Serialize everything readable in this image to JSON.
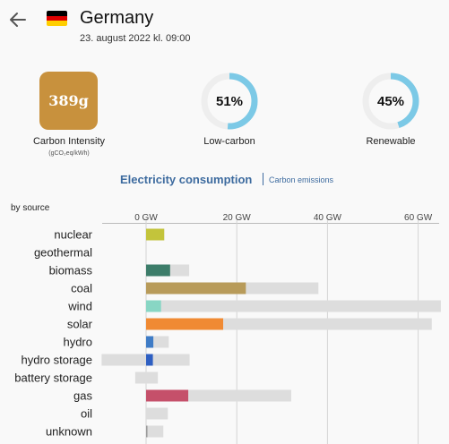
{
  "header": {
    "title": "Germany",
    "date": "23. august 2022 kl. 09:00",
    "flag_colors": [
      "#000000",
      "#dd0000",
      "#ffce00"
    ]
  },
  "summary": {
    "carbon_intensity": {
      "value": "389g",
      "label": "Carbon Intensity",
      "unit": "(gCO₂eq/kWh)",
      "color": "#c8913d"
    },
    "low_carbon": {
      "value": "51%",
      "label": "Low-carbon",
      "fraction": 0.51
    },
    "renewable": {
      "value": "45%",
      "label": "Renewable",
      "fraction": 0.45
    },
    "ring_color": "#7cc9e6",
    "ring_track": "#eeeeee"
  },
  "tabs": {
    "active": "Electricity consumption",
    "other": "Carbon emissions"
  },
  "by_source": "by source",
  "chart_data": {
    "type": "bar",
    "xlabel_ticks": [
      "0 GW",
      "20 GW",
      "40 GW",
      "60 GW"
    ],
    "tick_values": [
      0,
      20,
      40,
      60
    ],
    "xlim": [
      -10,
      65
    ],
    "categories": [
      "nuclear",
      "geothermal",
      "biomass",
      "coal",
      "wind",
      "solar",
      "hydro",
      "hydro storage",
      "battery storage",
      "gas",
      "oil",
      "unknown"
    ],
    "series": [
      {
        "values": [
          4,
          0,
          5.3,
          22,
          3.3,
          17,
          1.6,
          1.5,
          0,
          9.3,
          0,
          0.3
        ],
        "colors": [
          "#c3c43b",
          "#cccccc",
          "#3d7d6a",
          "#b89b5a",
          "#88d6c4",
          "#f08a33",
          "#3f7cc6",
          "#2e5fc2",
          "#cccccc",
          "#c5506a",
          "#cccccc",
          "#999999"
        ]
      },
      {
        "capacity_min": [
          0,
          0,
          0,
          0,
          0,
          0,
          0,
          -9.8,
          -2.4,
          0,
          0,
          0
        ],
        "capacity_max": [
          4,
          0,
          9.5,
          38,
          65,
          63,
          5,
          9.6,
          2.6,
          32,
          4.8,
          3.8
        ],
        "color": "#dddddd"
      }
    ]
  }
}
